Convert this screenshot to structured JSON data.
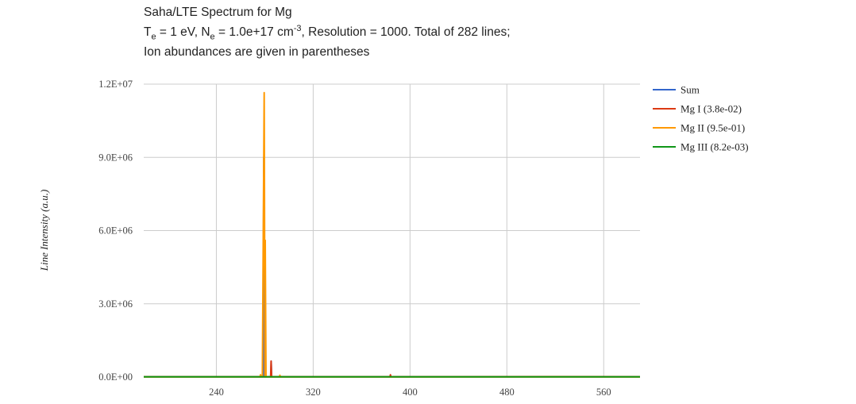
{
  "chart_data": {
    "type": "line",
    "title": "Saha/LTE Spectrum for Mg",
    "subtitle": {
      "te_label": "T",
      "te_sub": "e",
      "te_value": " = 1 eV, N",
      "ne_sub": "e",
      "ne_value": " = 1.0e+17 cm",
      "ne_exp": "-3",
      "rest": ", Resolution = 1000. Total of 282 lines;"
    },
    "subtitle2": "Ion abundances are given in parentheses",
    "xlabel": "",
    "ylabel": "Line Intensity (a.u.)",
    "xlim": [
      180,
      590
    ],
    "ylim": [
      0,
      12000000
    ],
    "x_ticks": [
      240,
      320,
      400,
      480,
      560
    ],
    "y_ticks": [
      {
        "value": 0,
        "label": "0.0E+00"
      },
      {
        "value": 3000000,
        "label": "3.0E+06"
      },
      {
        "value": 6000000,
        "label": "6.0E+06"
      },
      {
        "value": 9000000,
        "label": "9.0E+06"
      },
      {
        "value": 12000000,
        "label": "1.2E+07"
      }
    ],
    "grid": true,
    "legend_position": "right",
    "series": [
      {
        "name": "Sum",
        "color": "#3366cc",
        "points": [
          [
            180,
            5000
          ],
          [
            278.5,
            5000
          ],
          [
            279.2,
            9000000
          ],
          [
            279.8,
            5000
          ],
          [
            285,
            5000
          ],
          [
            285.3,
            650000
          ],
          [
            285.7,
            5000
          ],
          [
            383.5,
            5000
          ],
          [
            383.8,
            80000
          ],
          [
            384.1,
            5000
          ],
          [
            590,
            5000
          ]
        ]
      },
      {
        "name": "Mg I (3.8e-02)",
        "color": "#dc3912",
        "points": [
          [
            180,
            8000
          ],
          [
            284.8,
            8000
          ],
          [
            285.2,
            650000
          ],
          [
            285.7,
            8000
          ],
          [
            383.4,
            8000
          ],
          [
            383.8,
            90000
          ],
          [
            384.2,
            8000
          ],
          [
            516,
            15000
          ],
          [
            518,
            15000
          ],
          [
            590,
            8000
          ]
        ]
      },
      {
        "name": "Mg II (9.5e-01)",
        "color": "#ff9900",
        "points": [
          [
            180,
            3000
          ],
          [
            276,
            3000
          ],
          [
            276.5,
            90000
          ],
          [
            277,
            3000
          ],
          [
            278,
            3000
          ],
          [
            279.5,
            11650000
          ],
          [
            280.2,
            3000
          ],
          [
            280.4,
            5600000
          ],
          [
            281.0,
            3000
          ],
          [
            292,
            3000
          ],
          [
            292.5,
            70000
          ],
          [
            293,
            3000
          ],
          [
            590,
            3000
          ]
        ]
      },
      {
        "name": "Mg III (8.2e-03)",
        "color": "#109618",
        "points": [
          [
            180,
            10000
          ],
          [
            220,
            10000
          ],
          [
            230,
            6000
          ],
          [
            250,
            10000
          ],
          [
            280,
            6000
          ],
          [
            300,
            10000
          ],
          [
            590,
            10000
          ]
        ]
      }
    ]
  }
}
